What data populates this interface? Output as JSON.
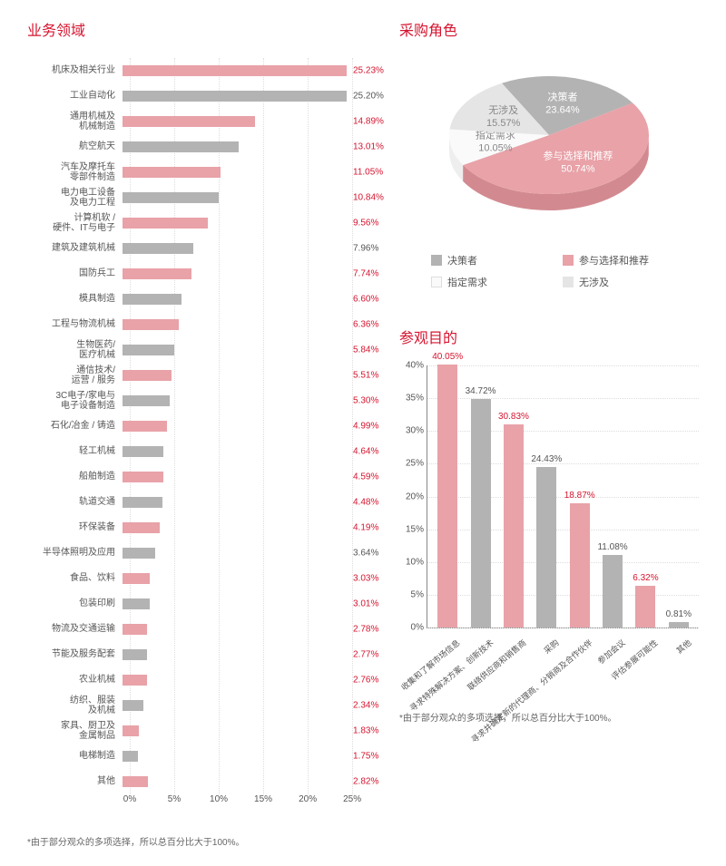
{
  "colors": {
    "accent": "#d6142f",
    "pink": "#e8a2a8",
    "pink_dark": "#d28a90",
    "grey": "#b3b3b3",
    "grey_dark": "#999999",
    "lightgrey": "#e5e5e5",
    "lightgrey_dark": "#cccccc",
    "nearwhite_dark": "#eeeeee",
    "text_grey": "#555555"
  },
  "hbar": {
    "title": "业务领域",
    "max": 25.5,
    "ticks": [
      0,
      5,
      10,
      15,
      20,
      25
    ],
    "items": [
      {
        "label": "机床及相关行业",
        "value": 25.23,
        "color": "pink",
        "text_accent": true
      },
      {
        "label": "工业自动化",
        "value": 25.2,
        "color": "grey",
        "text_accent": false
      },
      {
        "label": "通用机械及\n机械制造",
        "value": 14.89,
        "color": "pink",
        "text_accent": true
      },
      {
        "label": "航空航天",
        "value": 13.01,
        "color": "grey",
        "text_accent": true
      },
      {
        "label": "汽车及摩托车\n零部件制造",
        "value": 11.05,
        "color": "pink",
        "text_accent": true
      },
      {
        "label": "电力电工设备\n及电力工程",
        "value": 10.84,
        "color": "grey",
        "text_accent": true
      },
      {
        "label": "计算机软 /\n硬件、IT与电子",
        "value": 9.56,
        "color": "pink",
        "text_accent": true
      },
      {
        "label": "建筑及建筑机械",
        "value": 7.96,
        "color": "grey",
        "text_accent": false
      },
      {
        "label": "国防兵工",
        "value": 7.74,
        "color": "pink",
        "text_accent": true
      },
      {
        "label": "模具制造",
        "value": 6.6,
        "color": "grey",
        "text_accent": true
      },
      {
        "label": "工程与物流机械",
        "value": 6.36,
        "color": "pink",
        "text_accent": true
      },
      {
        "label": "生物医药/\n医疗机械",
        "value": 5.84,
        "color": "grey",
        "text_accent": true
      },
      {
        "label": "通信技术/\n运营 / 服务",
        "value": 5.51,
        "color": "pink",
        "text_accent": true
      },
      {
        "label": "3C电子/家电与\n电子设备制造",
        "value": 5.3,
        "color": "grey",
        "text_accent": true
      },
      {
        "label": "石化/冶金 / 铸造",
        "value": 4.99,
        "color": "pink",
        "text_accent": true
      },
      {
        "label": "轻工机械",
        "value": 4.64,
        "color": "grey",
        "text_accent": true
      },
      {
        "label": "船舶制造",
        "value": 4.59,
        "color": "pink",
        "text_accent": true
      },
      {
        "label": "轨道交通",
        "value": 4.48,
        "color": "grey",
        "text_accent": true
      },
      {
        "label": "环保装备",
        "value": 4.19,
        "color": "pink",
        "text_accent": true
      },
      {
        "label": "半导体照明及应用",
        "value": 3.64,
        "color": "grey",
        "text_accent": false
      },
      {
        "label": "食品、饮料",
        "value": 3.03,
        "color": "pink",
        "text_accent": true
      },
      {
        "label": "包装印刷",
        "value": 3.01,
        "color": "grey",
        "text_accent": true
      },
      {
        "label": "物流及交通运输",
        "value": 2.78,
        "color": "pink",
        "text_accent": true
      },
      {
        "label": "节能及服务配套",
        "value": 2.77,
        "color": "grey",
        "text_accent": true
      },
      {
        "label": "农业机械",
        "value": 2.76,
        "color": "pink",
        "text_accent": true
      },
      {
        "label": "纺织、服装\n及机械",
        "value": 2.34,
        "color": "grey",
        "text_accent": true
      },
      {
        "label": "家具、厨卫及\n金属制品",
        "value": 1.83,
        "color": "pink",
        "text_accent": true
      },
      {
        "label": "电梯制造",
        "value": 1.75,
        "color": "grey",
        "text_accent": true
      },
      {
        "label": "其他",
        "value": 2.82,
        "color": "pink",
        "text_accent": true
      }
    ],
    "footnote": "*由于部分观众的多项选择，所以总百分比大于100%。"
  },
  "pie": {
    "title": "采购角色",
    "slices": [
      {
        "label": "决策者",
        "value": 23.64,
        "fill": "grey",
        "side": "#999999",
        "text": "#ffffff"
      },
      {
        "label": "参与选择和推荐",
        "value": 50.74,
        "fill": "pink",
        "side": "#d28a90",
        "text": "#ffffff"
      },
      {
        "label": "指定需求",
        "value": 10.05,
        "fill": "nearwhite",
        "side": "#eeeeee",
        "text": "#888888"
      },
      {
        "label": "无涉及",
        "value": 15.57,
        "fill": "lightgrey",
        "side": "#cccccc",
        "text": "#888888"
      }
    ],
    "legend": [
      {
        "label": "决策者",
        "color": "grey"
      },
      {
        "label": "参与选择和推荐",
        "color": "pink"
      },
      {
        "label": "指定需求",
        "color": "nearwhite"
      },
      {
        "label": "无涉及",
        "color": "lightgrey"
      }
    ]
  },
  "vbar": {
    "title": "参观目的",
    "ymax": 40,
    "yticks": [
      0,
      5,
      10,
      15,
      20,
      25,
      30,
      35,
      40
    ],
    "items": [
      {
        "label": "收集和了解市场信息",
        "value": 40.05,
        "color": "pink"
      },
      {
        "label": "寻求特殊解决方案、创新技术",
        "value": 34.72,
        "color": "grey"
      },
      {
        "label": "联络供应商和销售商",
        "value": 30.83,
        "color": "pink"
      },
      {
        "label": "采购",
        "value": 24.43,
        "color": "grey"
      },
      {
        "label": "寻求并确定新的代理商、分销商及合作伙伴",
        "value": 18.87,
        "color": "pink"
      },
      {
        "label": "参加会议",
        "value": 11.08,
        "color": "grey"
      },
      {
        "label": "评估参展可能性",
        "value": 6.32,
        "color": "pink"
      },
      {
        "label": "其他",
        "value": 0.81,
        "color": "grey"
      }
    ],
    "footnote": "*由于部分观众的多项选择，所以总百分比大于100%。"
  }
}
